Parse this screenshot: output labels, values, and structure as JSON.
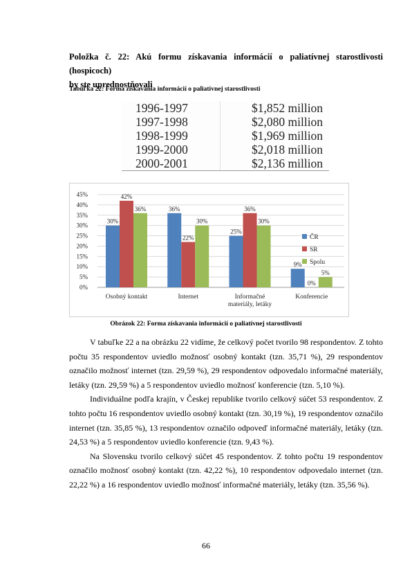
{
  "heading": {
    "line1": "Položka č. 22: Akú formu získavania informácií o paliatívnej starostlivosti (hospicoch)",
    "line2": "by ste uprednostňovali"
  },
  "table_caption": "Tabuľka 22: Forma získavania informácií o paliatívnej starostlivosti",
  "table_image": {
    "rows": [
      {
        "years": "1996-1997",
        "amount": "$1,852 million"
      },
      {
        "years": "1997-1998",
        "amount": "$2,080 million"
      },
      {
        "years": "1998-1999",
        "amount": "$1,969 million"
      },
      {
        "years": "1999-2000",
        "amount": "$2,018 million"
      },
      {
        "years": "2000-2001",
        "amount": "$2,136 million"
      }
    ]
  },
  "chart_data": {
    "type": "bar",
    "categories": [
      "Osobný kontakt",
      "Internet",
      "Informačné materiály, letáky",
      "Konferencie"
    ],
    "series": [
      {
        "name": "ČR",
        "color": "#4f81bd",
        "values": [
          30,
          36,
          25,
          9
        ],
        "labels": [
          "30%",
          "36%",
          "25%",
          "9%"
        ]
      },
      {
        "name": "SR",
        "color": "#c0504d",
        "values": [
          42,
          22,
          36,
          0
        ],
        "labels": [
          "42%",
          "22%",
          "36%",
          "0%"
        ]
      },
      {
        "name": "Spolu",
        "color": "#9bbb59",
        "values": [
          36,
          30,
          30,
          5
        ],
        "labels": [
          "36%",
          "30%",
          "30%",
          "5%"
        ]
      }
    ],
    "yticks": [
      "0%",
      "5%",
      "10%",
      "15%",
      "20%",
      "25%",
      "30%",
      "35%",
      "40%",
      "45%"
    ],
    "ylim": [
      0,
      45
    ],
    "grid": true,
    "legend": "right"
  },
  "figure_caption": "Obrázok 22: Forma získavania informácií o paliatívnej starostlivosti",
  "paragraphs": [
    "V tabuľke 22 a na obrázku 22 vidíme, že celkový počet tvorilo 98 respondentov. Z tohto počtu 35 respondentov uviedlo možnosť osobný kontakt (tzn. 35,71 %), 29 respondentov označilo možnosť internet (tzn. 29,59 %), 29 respondentov odpovedalo informačné materiály, letáky (tzn. 29,59 %) a 5 respondentov uviedlo možnosť konferencie (tzn. 5,10 %).",
    "Individuálne podľa krajín, v Českej republike tvorilo celkový súčet 53 respondentov. Z tohto počtu 16 respondentov uviedlo osobný kontakt (tzn. 30,19 %), 19 respondentov označilo internet (tzn. 35,85 %), 13 respondentov označilo odpoveď informačné materiály, letáky (tzn. 24,53 %) a 5 respondentov uviedlo konferencie (tzn. 9,43 %).",
    "Na Slovensku tvorilo celkový súčet 45 respondentov. Z tohto počtu 19 respondentov označilo možnosť osobný kontakt (tzn. 42,22 %), 10 respondentov odpovedalo internet (tzn. 22,22 %) a 16 respondentov uviedlo možnosť informačné materiály, letáky (tzn. 35,56 %)."
  ],
  "page_number": "66"
}
